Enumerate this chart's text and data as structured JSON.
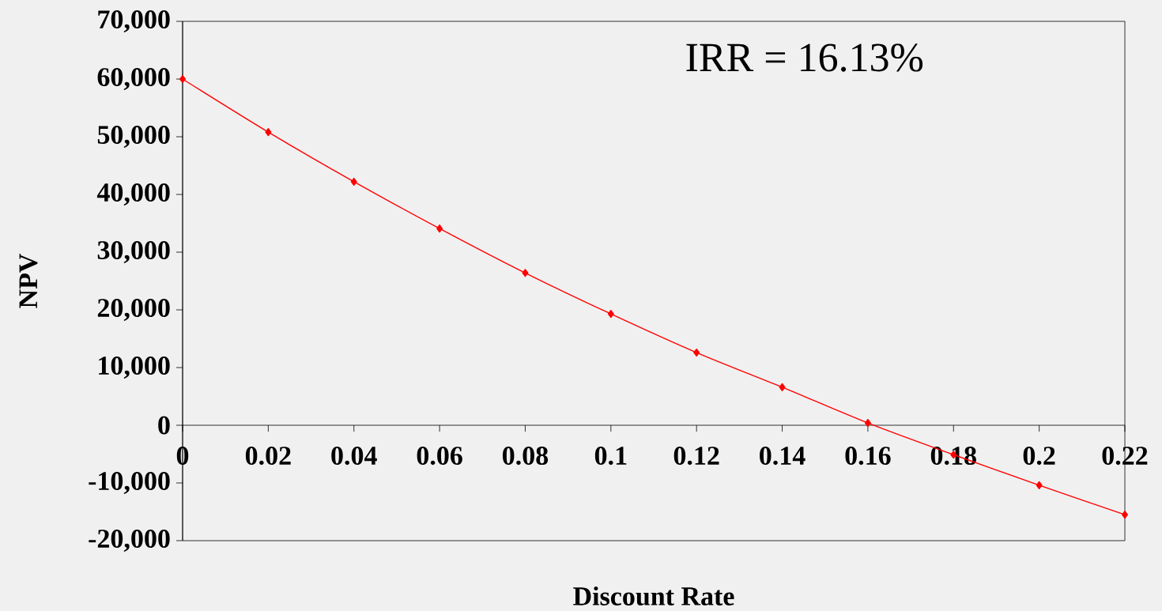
{
  "chart_data": {
    "type": "line",
    "xlabel": "Discount Rate",
    "ylabel": "NPV",
    "x": [
      0,
      0.02,
      0.04,
      0.06,
      0.08,
      0.1,
      0.12,
      0.14,
      0.16,
      0.18,
      0.2,
      0.22
    ],
    "series": [
      {
        "color": "#ff0000",
        "values": [
          60000,
          50800,
          42200,
          34100,
          26400,
          19300,
          12600,
          6600,
          400,
          -5100,
          -10400,
          -15500
        ]
      }
    ],
    "xlim": [
      0,
      0.22
    ],
    "xticks": [
      0,
      0.02,
      0.04,
      0.06,
      0.08,
      0.1,
      0.12,
      0.14,
      0.16,
      0.18,
      0.2,
      0.22
    ],
    "ylim": [
      -20000,
      70000
    ],
    "yticks": [
      {
        "value": -20000,
        "label": "-20,000"
      },
      {
        "value": -10000,
        "label": "-10,000"
      },
      {
        "value": 0,
        "label": "0"
      },
      {
        "value": 10000,
        "label": "10,000"
      },
      {
        "value": 20000,
        "label": "20,000"
      },
      {
        "value": 30000,
        "label": "30,000"
      },
      {
        "value": 40000,
        "label": "40,000"
      },
      {
        "value": 50000,
        "label": "50,000"
      },
      {
        "value": 60000,
        "label": "60,000"
      },
      {
        "value": 70000,
        "label": "70,000"
      }
    ],
    "annotations": [
      "IRR = 16.13%"
    ],
    "marker": "diamond",
    "line_style": "solid",
    "grid": false
  }
}
